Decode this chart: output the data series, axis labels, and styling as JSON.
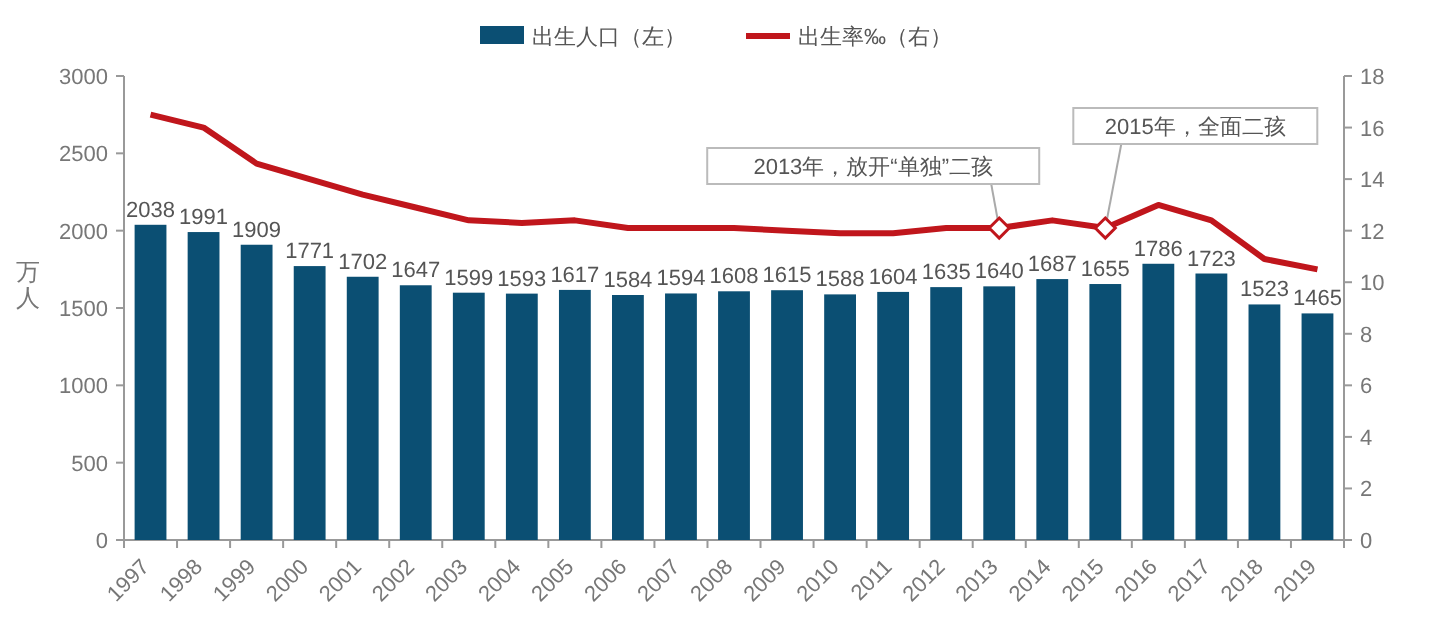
{
  "chart_data": {
    "type": "bar",
    "categories": [
      "1997",
      "1998",
      "1999",
      "2000",
      "2001",
      "2002",
      "2003",
      "2004",
      "2005",
      "2006",
      "2007",
      "2008",
      "2009",
      "2010",
      "2011",
      "2012",
      "2013",
      "2014",
      "2015",
      "2016",
      "2017",
      "2018",
      "2019"
    ],
    "series": [
      {
        "name": "出生人口（左）",
        "color": "#0b4f73",
        "values": [
          2038,
          1991,
          1909,
          1771,
          1702,
          1647,
          1599,
          1593,
          1617,
          1584,
          1594,
          1608,
          1615,
          1588,
          1604,
          1635,
          1640,
          1687,
          1655,
          1786,
          1723,
          1523,
          1465
        ],
        "value_labels": [
          "2038",
          "1991",
          "1909",
          "1771",
          "1702",
          "1647",
          "1599",
          "1593",
          "1617",
          "1584",
          "1594",
          "1608",
          "1615",
          "1588",
          "1604",
          "1635",
          "1640",
          "1687",
          "1655",
          "1786",
          "1723",
          "1523",
          "1465"
        ]
      },
      {
        "name": "出生率‰（右）",
        "type": "line",
        "axis": "y2",
        "color": "#c0161c",
        "values": [
          16.5,
          16.0,
          14.6,
          14.0,
          13.4,
          12.9,
          12.4,
          12.3,
          12.4,
          12.1,
          12.1,
          12.1,
          12.0,
          11.9,
          11.9,
          12.1,
          12.1,
          12.4,
          12.1,
          13.0,
          12.4,
          10.9,
          10.5
        ]
      }
    ],
    "ylabel": "万人",
    "ylim": [
      0,
      3000
    ],
    "yticks": [
      0,
      500,
      1000,
      1500,
      2000,
      2500,
      3000
    ],
    "y2lim": [
      0,
      18
    ],
    "y2ticks": [
      0,
      2,
      4,
      6,
      8,
      10,
      12,
      14,
      16,
      18
    ],
    "legend": "top",
    "grid": false,
    "annotations": [
      {
        "text": "2013年，放开“单独”二孩",
        "x": "2013",
        "y": 2017
      },
      {
        "text": "2015年，全面二孩",
        "x": "2015",
        "y": 2017
      }
    ]
  }
}
